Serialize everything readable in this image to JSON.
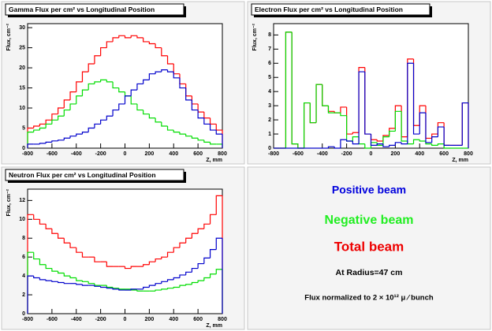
{
  "chart_data": [
    {
      "type": "histogram",
      "title": "Gamma Flux per cm² vs Longitudinal Position",
      "xlabel": "Z, mm",
      "ylabel": "Flux, cm⁻²",
      "bins": [
        -800,
        -750,
        -700,
        -650,
        -600,
        -550,
        -500,
        -450,
        -400,
        -350,
        -300,
        -250,
        -200,
        -150,
        -100,
        -50,
        0,
        50,
        100,
        150,
        200,
        250,
        300,
        350,
        400,
        450,
        500,
        550,
        600,
        650,
        700,
        750,
        800
      ],
      "xlim": [
        -800,
        800
      ],
      "xticks": [
        -800,
        -600,
        -400,
        -200,
        0,
        200,
        400,
        600,
        800
      ],
      "ylim": [
        0,
        31
      ],
      "yticks": [
        0,
        5,
        10,
        15,
        20,
        25,
        30
      ],
      "series": [
        {
          "color": "#ff0000",
          "values": [
            5,
            5.5,
            6,
            7,
            8.5,
            10,
            12,
            14,
            16.5,
            19,
            21,
            23,
            25,
            26.5,
            27.5,
            28,
            27.5,
            28,
            27.5,
            26.5,
            26,
            25,
            23,
            21,
            18.5,
            16,
            13,
            11,
            9,
            7.5,
            6,
            4.5
          ]
        },
        {
          "color": "#00dd00",
          "values": [
            4,
            4.5,
            5,
            6,
            7,
            8,
            9.5,
            11,
            13,
            14.5,
            16,
            16.5,
            17,
            16.5,
            15,
            14,
            13,
            11,
            9.5,
            8.5,
            7.5,
            6.5,
            5.5,
            4.5,
            4,
            3.5,
            3,
            2.5,
            2,
            1.5,
            1,
            1
          ]
        },
        {
          "color": "#0000cc",
          "values": [
            1,
            1,
            1.2,
            1.5,
            1.8,
            2,
            2.5,
            3,
            3.5,
            4,
            5,
            6,
            7,
            8,
            9.5,
            11,
            13,
            14.5,
            16,
            17,
            18.5,
            19,
            19.5,
            19,
            17.5,
            15,
            12,
            9.5,
            7.5,
            6,
            4.5,
            3.5
          ]
        }
      ]
    },
    {
      "type": "histogram",
      "title": "Electron Flux per cm² vs Longitudinal Position",
      "xlabel": "Z, mm",
      "ylabel": "Flux, cm⁻²",
      "bins": [
        -800,
        -750,
        -700,
        -650,
        -600,
        -550,
        -500,
        -450,
        -400,
        -350,
        -300,
        -250,
        -200,
        -150,
        -100,
        -50,
        0,
        50,
        100,
        150,
        200,
        250,
        300,
        350,
        400,
        450,
        500,
        550,
        600,
        650,
        700,
        750,
        800
      ],
      "xlim": [
        -800,
        800
      ],
      "xticks": [
        -800,
        -600,
        -400,
        -200,
        0,
        200,
        400,
        600,
        800
      ],
      "ylim": [
        0,
        8.8
      ],
      "yticks": [
        0,
        1,
        2,
        3,
        4,
        5,
        6,
        7,
        8
      ],
      "series": [
        {
          "color": "#ff0000",
          "values": [
            0,
            0,
            8.2,
            0.3,
            0,
            3.2,
            1.8,
            4.5,
            3.0,
            2.6,
            2.5,
            2.9,
            1.0,
            1.1,
            5.7,
            1.0,
            0.6,
            0.5,
            0.9,
            1.4,
            3.0,
            0.8,
            6.3,
            1.6,
            3.0,
            0.7,
            1.0,
            1.8,
            0.2,
            0.2,
            0.2,
            3.2
          ]
        },
        {
          "color": "#00dd00",
          "values": [
            0,
            0,
            8.2,
            0.3,
            0,
            3.2,
            1.8,
            4.5,
            3.0,
            2.5,
            2.5,
            2.3,
            0.5,
            0.8,
            0.3,
            0,
            0.4,
            0.2,
            0.8,
            1.2,
            2.6,
            0.5,
            0.3,
            0.6,
            0.5,
            0.3,
            0.2,
            0.3,
            0,
            0,
            0,
            0
          ]
        },
        {
          "color": "#0000cc",
          "values": [
            0,
            0,
            0,
            0,
            0,
            0,
            0,
            0,
            0,
            0.1,
            0,
            0.6,
            0.5,
            0.3,
            5.4,
            1.0,
            0.2,
            0.3,
            0.1,
            0.2,
            0.4,
            0.3,
            6.0,
            1.0,
            2.5,
            0.4,
            0.8,
            1.5,
            0.2,
            0.2,
            0.2,
            3.2
          ]
        }
      ]
    },
    {
      "type": "histogram",
      "title": "Neutron Flux per cm² vs Longitudinal Position",
      "xlabel": "Z, mm",
      "ylabel": "Flux, cm⁻²",
      "bins": [
        -800,
        -750,
        -700,
        -650,
        -600,
        -550,
        -500,
        -450,
        -400,
        -350,
        -300,
        -250,
        -200,
        -150,
        -100,
        -50,
        0,
        50,
        100,
        150,
        200,
        250,
        300,
        350,
        400,
        450,
        500,
        550,
        600,
        650,
        700,
        750,
        800
      ],
      "xlim": [
        -800,
        800
      ],
      "xticks": [
        -800,
        -600,
        -400,
        -200,
        0,
        200,
        400,
        600,
        800
      ],
      "ylim": [
        0,
        13.2
      ],
      "yticks": [
        0,
        2,
        4,
        6,
        8,
        10,
        12
      ],
      "series": [
        {
          "color": "#ff0000",
          "values": [
            10.5,
            10,
            9.5,
            9,
            8.5,
            8,
            7.5,
            7,
            6.5,
            6,
            6,
            5.5,
            5.5,
            5,
            5,
            5,
            4.8,
            5,
            5,
            5.2,
            5.5,
            5.8,
            6,
            6.5,
            7,
            7.5,
            8,
            8.5,
            9,
            9.5,
            10.5,
            12.5
          ]
        },
        {
          "color": "#00dd00",
          "values": [
            6.5,
            5.8,
            5.2,
            4.8,
            4.5,
            4.3,
            4,
            3.8,
            3.5,
            3.4,
            3.2,
            3,
            3,
            2.8,
            2.7,
            2.6,
            2.6,
            2.5,
            2.4,
            2.4,
            2.4,
            2.5,
            2.6,
            2.7,
            2.8,
            3,
            3.1,
            3.3,
            3.5,
            3.8,
            4.2,
            4.7
          ]
        },
        {
          "color": "#0000cc",
          "values": [
            4,
            3.8,
            3.6,
            3.5,
            3.4,
            3.3,
            3.2,
            3.2,
            3.1,
            3,
            3,
            2.9,
            2.8,
            2.7,
            2.6,
            2.5,
            2.5,
            2.6,
            2.6,
            2.8,
            3,
            3.2,
            3.4,
            3.6,
            3.8,
            4.1,
            4.4,
            4.8,
            5.3,
            5.9,
            6.8,
            8
          ]
        }
      ]
    }
  ],
  "legend_panel": {
    "lines": [
      {
        "text": "Positive beam",
        "color": "#0000dd"
      },
      {
        "text": "Negative beam",
        "color": "#22ee22"
      },
      {
        "text": "Total beam",
        "color": "#ee0000"
      },
      {
        "text": "At Radius=47 cm",
        "color": "#000000"
      },
      {
        "text": "Flux normalized to 2 × 10¹² μ ⁄ bunch",
        "color": "#000000"
      }
    ]
  }
}
